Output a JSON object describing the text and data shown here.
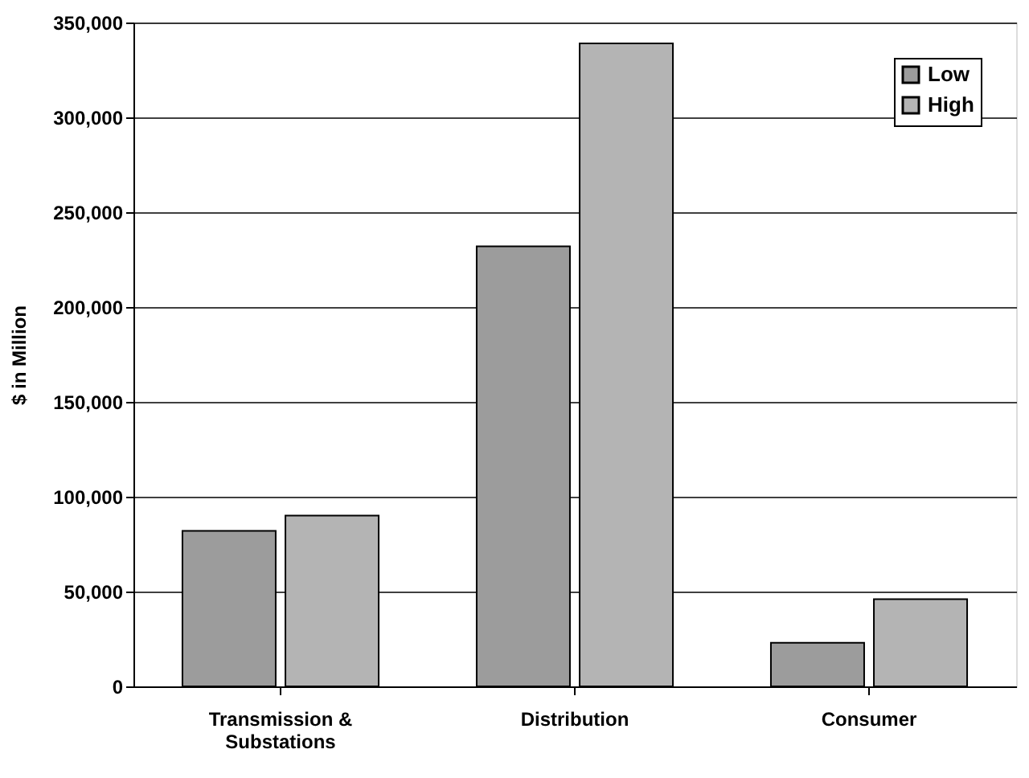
{
  "chart_data": {
    "type": "bar",
    "ylabel": "$ in Million",
    "categories": [
      "Transmission & Substations",
      "Distribution",
      "Consumer"
    ],
    "series": [
      {
        "name": "Low",
        "color": "#9c9c9c",
        "values": [
          82000,
          232000,
          23000
        ]
      },
      {
        "name": "High",
        "color": "#b4b4b4",
        "values": [
          90000,
          339000,
          46000
        ]
      }
    ],
    "ylim": [
      0,
      350000
    ],
    "yticks": [
      0,
      {
        "value": 50000,
        "label": "50,000"
      },
      {
        "value": 100000,
        "label": "100,000"
      },
      {
        "value": 150000,
        "label": "150,000"
      },
      {
        "value": 200000,
        "label": "200,000"
      },
      {
        "value": 250000,
        "label": "250,000"
      },
      {
        "value": 300000,
        "label": "300,000"
      },
      {
        "value": 350000,
        "label": "350,000"
      }
    ],
    "grid": "y",
    "legend": "top right"
  }
}
